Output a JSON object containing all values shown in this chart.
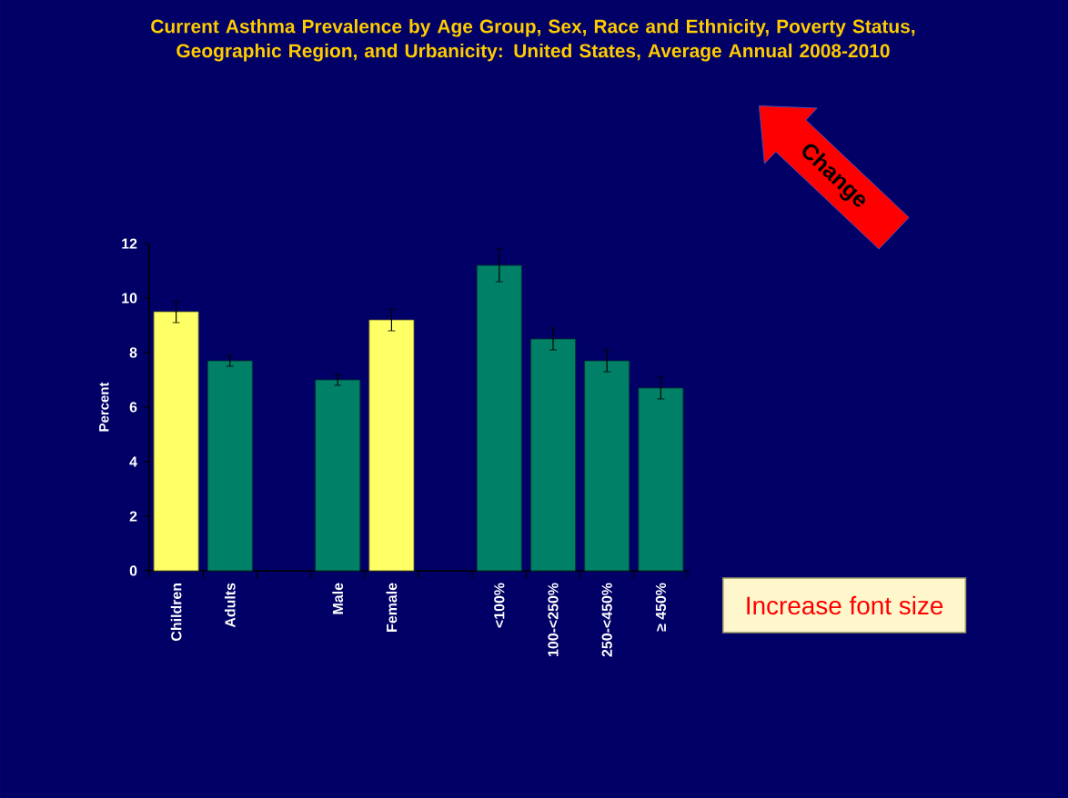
{
  "chart_data": {
    "type": "bar",
    "title": "Current Asthma Prevalence by Age Group, Sex, Race and Ethnicity, Poverty Status, Geographic Region, and Urbanicity: United States, Average Annual 2008-2010",
    "ylabel": "Percent",
    "categories": [
      "Children",
      "Adults",
      null,
      "Male",
      "Female",
      null,
      "<100%",
      "100-<250%",
      "250-<450%",
      "≥ 450%"
    ],
    "values": [
      9.5,
      7.7,
      null,
      7.0,
      9.2,
      null,
      11.2,
      8.5,
      7.7,
      6.7
    ],
    "errors": [
      [
        9.1,
        9.9
      ],
      [
        7.5,
        7.9
      ],
      null,
      [
        6.8,
        7.2
      ],
      [
        8.8,
        9.6
      ],
      null,
      [
        10.6,
        11.8
      ],
      [
        8.1,
        8.9
      ],
      [
        7.3,
        8.1
      ],
      [
        6.3,
        7.1
      ]
    ],
    "colors": [
      "#ffff66",
      "#008066",
      null,
      "#008066",
      "#ffff66",
      null,
      "#008066",
      "#008066",
      "#008066",
      "#008066"
    ],
    "ylim": [
      0,
      12
    ],
    "yticks": [
      0,
      2,
      4,
      6,
      8,
      10,
      12
    ],
    "annotations": [
      "Change",
      "Increase font size"
    ]
  }
}
